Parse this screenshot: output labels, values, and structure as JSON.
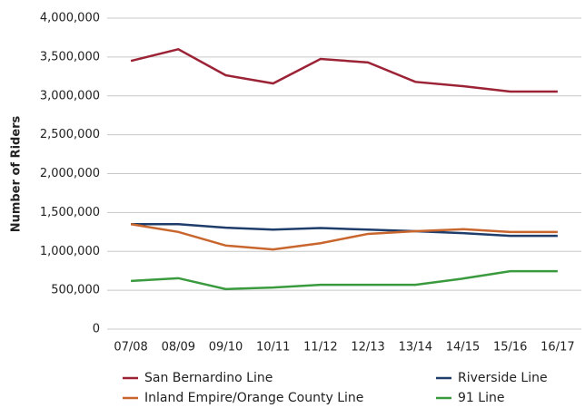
{
  "chart_data": {
    "type": "line",
    "y_label": "Number of Riders",
    "categories": [
      "07/08",
      "08/09",
      "09/10",
      "10/11",
      "11/12",
      "12/13",
      "13/14",
      "14/15",
      "15/16",
      "16/17"
    ],
    "series": [
      {
        "name": "San Bernardino Line",
        "color": "#9b2335",
        "values": [
          3450000,
          3600000,
          3265000,
          3160000,
          3475000,
          3430000,
          3180000,
          3125000,
          3055000,
          3055000
        ]
      },
      {
        "name": "Riverside Line",
        "color": "#1f3d6b",
        "values": [
          1350000,
          1350000,
          1305000,
          1280000,
          1300000,
          1280000,
          1260000,
          1235000,
          1200000,
          1200000
        ]
      },
      {
        "name": "Inland Empire/Orange County Line",
        "color": "#c8662e",
        "values": [
          1350000,
          1250000,
          1075000,
          1025000,
          1105000,
          1225000,
          1260000,
          1285000,
          1250000,
          1250000
        ]
      },
      {
        "name": "91 Line",
        "color": "#3a9a3e",
        "values": [
          620000,
          655000,
          515000,
          535000,
          570000,
          570000,
          570000,
          650000,
          745000,
          745000
        ]
      }
    ],
    "ylim": [
      0,
      4000000
    ],
    "yticks": [
      0,
      {
        "value": 500000,
        "label": "500,000"
      },
      {
        "value": 1000000,
        "label": "1,000,000"
      },
      {
        "value": 1500000,
        "label": "1,500,000"
      },
      {
        "value": 2000000,
        "label": "2,000,000"
      },
      {
        "value": 2500000,
        "label": "2,500,000"
      },
      {
        "value": 3000000,
        "label": "3,000,000"
      },
      {
        "value": 3500000,
        "label": "3,500,000"
      },
      {
        "value": 4000000,
        "label": "4,000,000"
      }
    ],
    "grid": true,
    "legend": "bottom"
  }
}
